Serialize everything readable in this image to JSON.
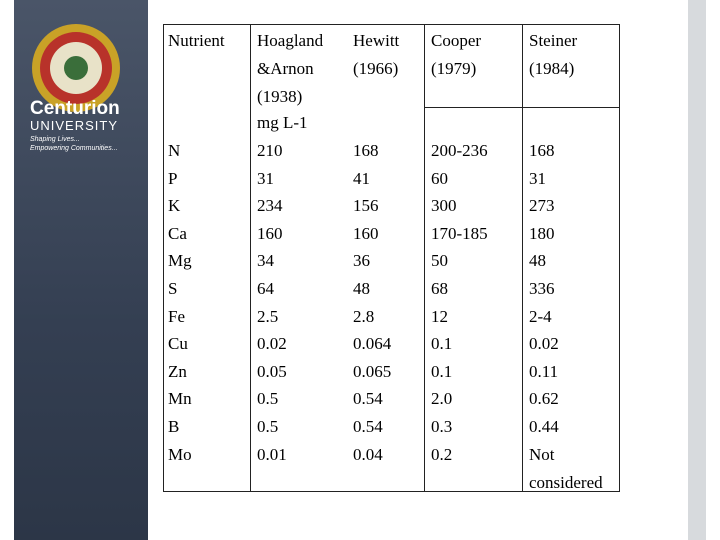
{
  "logo": {
    "name": "Centurion",
    "subname": "UNIVERSITY",
    "tagline_1": "Shaping Lives...",
    "tagline_2": "Empowering Communities..."
  },
  "table": {
    "header": [
      "Nutrient",
      "Hoagland &Arnon (1938)",
      "Hewitt (1966)",
      "Cooper (1979)",
      "Steiner (1984)"
    ],
    "unit": "mg L-1",
    "rows": [
      [
        "N",
        "210",
        "168",
        "200-236",
        "168"
      ],
      [
        "P",
        "31",
        "41",
        "60",
        "31"
      ],
      [
        "K",
        "234",
        "156",
        "300",
        "273"
      ],
      [
        "Ca",
        "160",
        "160",
        "170-185",
        "180"
      ],
      [
        "Mg",
        "34",
        "36",
        "50",
        "48"
      ],
      [
        "S",
        "64",
        "48",
        "68",
        "336"
      ],
      [
        "Fe",
        "2.5",
        "2.8",
        "12",
        "2-4"
      ],
      [
        "Cu",
        "0.02",
        "0.064",
        "0.1",
        "0.02"
      ],
      [
        "Zn",
        "0.05",
        "0.065",
        "0.1",
        "0.11"
      ],
      [
        "Mn",
        "0.5",
        "0.54",
        "2.0",
        "0.62"
      ],
      [
        "B",
        "0.5",
        "0.54",
        "0.3",
        "0.44"
      ],
      [
        "Mo",
        "0.01",
        "0.04",
        "0.2",
        "Not considered"
      ]
    ]
  }
}
